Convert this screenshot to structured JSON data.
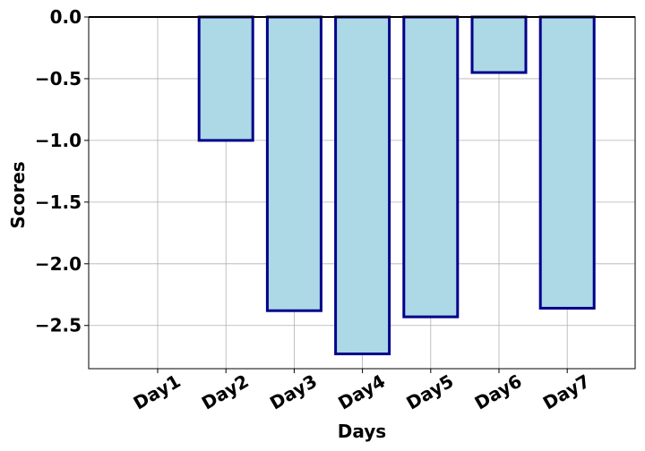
{
  "chart_data": {
    "type": "bar",
    "categories": [
      "Day1",
      "Day2",
      "Day3",
      "Day4",
      "Day5",
      "Day6",
      "Day7"
    ],
    "values": [
      0.0,
      -1.0,
      -2.38,
      -2.73,
      -2.43,
      -0.45,
      -2.36
    ],
    "title": "",
    "xlabel": "Days",
    "ylabel": "Scores",
    "ylim": [
      -2.85,
      0.0
    ],
    "yticks": [
      0.0,
      -0.5,
      -1.0,
      -1.5,
      -2.0,
      -2.5
    ],
    "ytick_labels": [
      "0.0",
      "−0.5",
      "−1.0",
      "−1.5",
      "−2.0",
      "−2.5"
    ],
    "grid": true,
    "bar_fill": "#add8e6",
    "bar_edge": "#00008b",
    "zero_line_color": "#000000",
    "grid_color": "#b0b0b0"
  }
}
